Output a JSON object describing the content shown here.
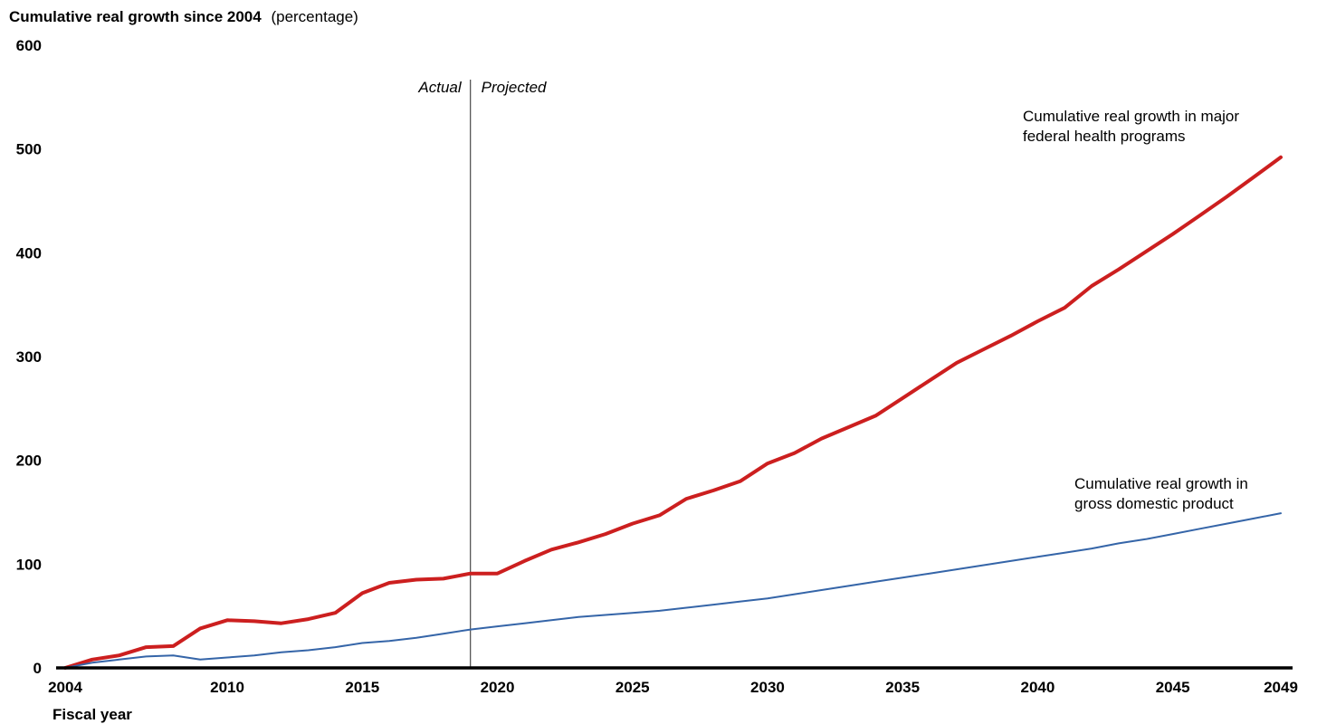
{
  "chart_data": {
    "type": "line",
    "title": "Cumulative real growth since 2004",
    "title_unit": "(percentage)",
    "xlabel": "Fiscal year",
    "ylabel": "",
    "xlim": [
      2004,
      2049
    ],
    "ylim": [
      0,
      600
    ],
    "grid": false,
    "legend": "none",
    "y_ticks": [
      0,
      100,
      200,
      300,
      400,
      500,
      600
    ],
    "x_ticks": [
      2004,
      2010,
      2015,
      2020,
      2025,
      2030,
      2035,
      2040,
      2045,
      2049
    ],
    "divider": {
      "x": 2019,
      "left_label": "Actual",
      "right_label": "Projected"
    },
    "x": [
      2004,
      2005,
      2006,
      2007,
      2008,
      2009,
      2010,
      2011,
      2012,
      2013,
      2014,
      2015,
      2016,
      2017,
      2018,
      2019,
      2020,
      2021,
      2022,
      2023,
      2024,
      2025,
      2026,
      2027,
      2028,
      2029,
      2030,
      2031,
      2032,
      2033,
      2034,
      2035,
      2036,
      2037,
      2038,
      2039,
      2040,
      2041,
      2042,
      2043,
      2044,
      2045,
      2046,
      2047,
      2048,
      2049
    ],
    "series": [
      {
        "color": "#cc1f1f",
        "label_lines": [
          "Cumulative real growth in major",
          "federal health programs"
        ],
        "values": [
          0,
          8,
          12,
          20,
          21,
          38,
          46,
          45,
          43,
          47,
          53,
          72,
          82,
          85,
          86,
          91,
          91,
          103,
          114,
          121,
          129,
          139,
          147,
          163,
          171,
          180,
          197,
          207,
          221,
          232,
          243,
          260,
          277,
          294,
          307,
          320,
          334,
          347,
          368,
          384,
          401,
          418,
          436,
          454,
          473,
          492
        ]
      },
      {
        "color": "#3565a8",
        "label_lines": [
          "Cumulative real growth in",
          "gross domestic product"
        ],
        "values": [
          0,
          5,
          8,
          11,
          12,
          8,
          10,
          12,
          15,
          17,
          20,
          24,
          26,
          29,
          33,
          37,
          40,
          43,
          46,
          49,
          51,
          53,
          55,
          58,
          61,
          64,
          67,
          71,
          75,
          79,
          83,
          87,
          91,
          95,
          99,
          103,
          107,
          111,
          115,
          120,
          124,
          129,
          134,
          139,
          144,
          149
        ]
      }
    ]
  }
}
